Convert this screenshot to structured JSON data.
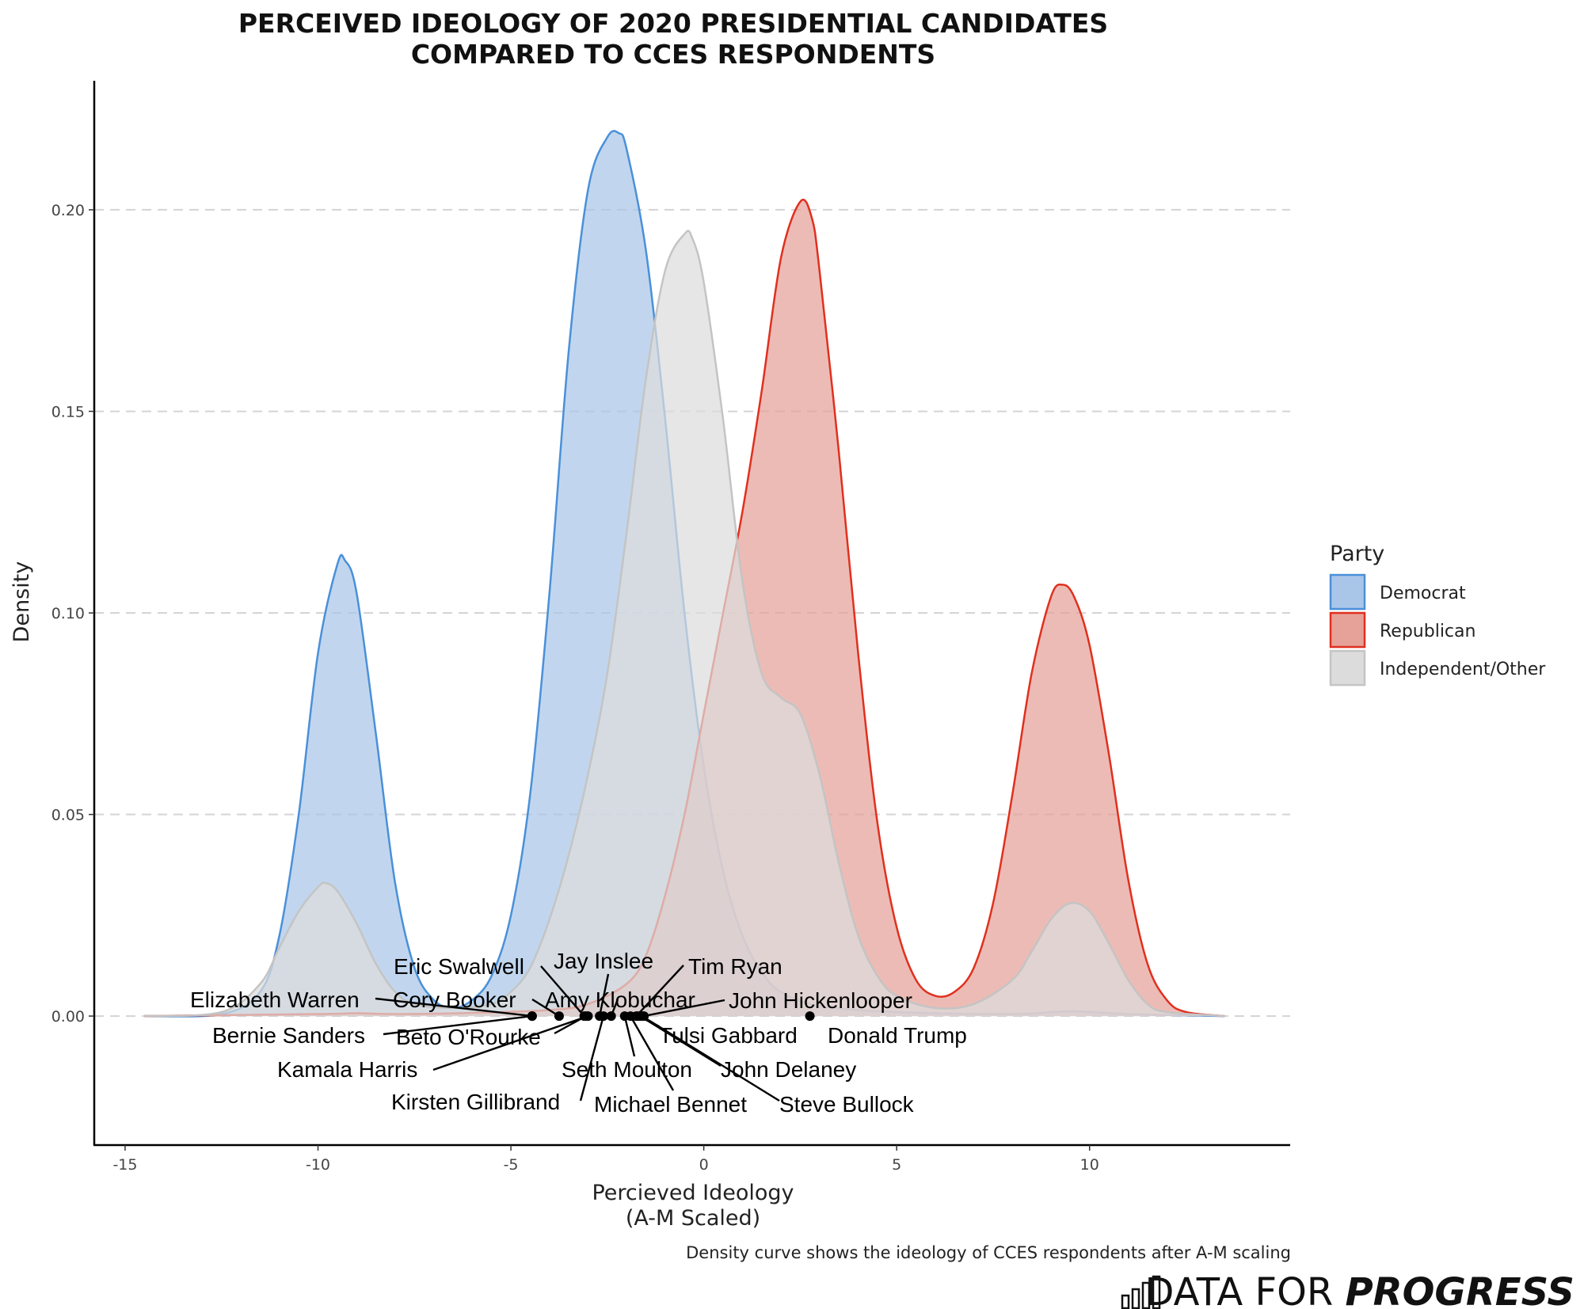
{
  "chart_data": {
    "type": "area",
    "title_lines": [
      "PERCEIVED IDEOLOGY OF 2020 PRESIDENTIAL CANDIDATES",
      "COMPARED TO CCES RESPONDENTS"
    ],
    "xlabel_lines": [
      "Percieved Ideology",
      "(A-M Scaled)"
    ],
    "ylabel": "Density",
    "caption": "Density curve shows the ideology of CCES respondents after A-M scaling",
    "xlim": [
      -15.8,
      15.2
    ],
    "ylim": [
      -0.032,
      0.232
    ],
    "x_ticks": [
      -15,
      -10,
      -5,
      0,
      5,
      10
    ],
    "y_ticks": [
      0.0,
      0.05,
      0.1,
      0.15,
      0.2
    ],
    "y_tick_labels": [
      "0.00",
      "0.05",
      "0.10",
      "0.15",
      "0.20"
    ],
    "grid": "horizontal dashed",
    "legend": {
      "title": "Party",
      "placement": "right",
      "entries": [
        {
          "label": "Democrat",
          "fill": "#a9c6e8",
          "stroke": "#4a90d9"
        },
        {
          "label": "Republican",
          "fill": "#e6a198",
          "stroke": "#e0301e"
        },
        {
          "label": "Independent/Other",
          "fill": "#dcdcdc",
          "stroke": "#c4c4c4"
        }
      ]
    },
    "series": [
      {
        "name": "Democrat",
        "fill": "#a9c6e8",
        "stroke": "#4a90d9",
        "points": [
          [
            -14.5,
            0
          ],
          [
            -12.5,
            0.0005
          ],
          [
            -11.5,
            0.006
          ],
          [
            -11,
            0.02
          ],
          [
            -10.5,
            0.05
          ],
          [
            -10,
            0.09
          ],
          [
            -9.5,
            0.112
          ],
          [
            -9.3,
            0.113
          ],
          [
            -9,
            0.105
          ],
          [
            -8.5,
            0.07
          ],
          [
            -8,
            0.033
          ],
          [
            -7.5,
            0.012
          ],
          [
            -7,
            0.004
          ],
          [
            -6.5,
            0.002
          ],
          [
            -6,
            0.004
          ],
          [
            -5.5,
            0.01
          ],
          [
            -5,
            0.025
          ],
          [
            -4.5,
            0.055
          ],
          [
            -4,
            0.105
          ],
          [
            -3.5,
            0.165
          ],
          [
            -3,
            0.205
          ],
          [
            -2.5,
            0.218
          ],
          [
            -2.2,
            0.219
          ],
          [
            -2,
            0.215
          ],
          [
            -1.5,
            0.19
          ],
          [
            -1,
            0.148
          ],
          [
            -0.5,
            0.1
          ],
          [
            0,
            0.062
          ],
          [
            0.5,
            0.036
          ],
          [
            1,
            0.02
          ],
          [
            1.5,
            0.011
          ],
          [
            2,
            0.006
          ],
          [
            3,
            0.0025
          ],
          [
            5,
            0.001
          ],
          [
            8,
            0.0005
          ],
          [
            9.5,
            0.0012
          ],
          [
            11,
            0.0005
          ],
          [
            13.5,
            0
          ]
        ]
      },
      {
        "name": "Republican",
        "fill": "#e6a198",
        "stroke": "#e0301e",
        "points": [
          [
            -14.5,
            0
          ],
          [
            -10,
            0.0005
          ],
          [
            -9,
            0.0007
          ],
          [
            -8,
            0.0005
          ],
          [
            -6,
            0.0008
          ],
          [
            -4,
            0.0015
          ],
          [
            -3,
            0.003
          ],
          [
            -2,
            0.008
          ],
          [
            -1.5,
            0.015
          ],
          [
            -1,
            0.03
          ],
          [
            -0.5,
            0.05
          ],
          [
            0,
            0.075
          ],
          [
            0.5,
            0.1
          ],
          [
            1,
            0.125
          ],
          [
            1.5,
            0.155
          ],
          [
            2,
            0.188
          ],
          [
            2.5,
            0.202
          ],
          [
            2.8,
            0.198
          ],
          [
            3,
            0.185
          ],
          [
            3.5,
            0.14
          ],
          [
            4,
            0.09
          ],
          [
            4.5,
            0.048
          ],
          [
            5,
            0.022
          ],
          [
            5.5,
            0.009
          ],
          [
            6,
            0.005
          ],
          [
            6.5,
            0.006
          ],
          [
            7,
            0.012
          ],
          [
            7.5,
            0.028
          ],
          [
            8,
            0.055
          ],
          [
            8.5,
            0.085
          ],
          [
            9,
            0.104
          ],
          [
            9.3,
            0.107
          ],
          [
            9.6,
            0.104
          ],
          [
            10,
            0.092
          ],
          [
            10.5,
            0.065
          ],
          [
            11,
            0.034
          ],
          [
            11.5,
            0.013
          ],
          [
            12,
            0.004
          ],
          [
            12.5,
            0.001
          ],
          [
            13.5,
            0
          ]
        ]
      },
      {
        "name": "Independent/Other",
        "fill": "#dcdcdc",
        "stroke": "#c4c4c4",
        "points": [
          [
            -14.5,
            0
          ],
          [
            -12.5,
            0.001
          ],
          [
            -11.5,
            0.008
          ],
          [
            -11,
            0.017
          ],
          [
            -10.5,
            0.026
          ],
          [
            -10,
            0.032
          ],
          [
            -9.8,
            0.033
          ],
          [
            -9.5,
            0.031
          ],
          [
            -9,
            0.023
          ],
          [
            -8.5,
            0.013
          ],
          [
            -8,
            0.006
          ],
          [
            -7.5,
            0.003
          ],
          [
            -6.5,
            0.002
          ],
          [
            -5.5,
            0.003
          ],
          [
            -5,
            0.006
          ],
          [
            -4.5,
            0.012
          ],
          [
            -4,
            0.024
          ],
          [
            -3.5,
            0.04
          ],
          [
            -3,
            0.06
          ],
          [
            -2.5,
            0.085
          ],
          [
            -2,
            0.12
          ],
          [
            -1.5,
            0.158
          ],
          [
            -1,
            0.185
          ],
          [
            -0.5,
            0.194
          ],
          [
            -0.3,
            0.193
          ],
          [
            0,
            0.182
          ],
          [
            0.5,
            0.148
          ],
          [
            1,
            0.108
          ],
          [
            1.5,
            0.085
          ],
          [
            2,
            0.079
          ],
          [
            2.5,
            0.075
          ],
          [
            3,
            0.06
          ],
          [
            3.5,
            0.038
          ],
          [
            4,
            0.02
          ],
          [
            4.5,
            0.01
          ],
          [
            5,
            0.005
          ],
          [
            6,
            0.002
          ],
          [
            7,
            0.003
          ],
          [
            8,
            0.009
          ],
          [
            8.5,
            0.016
          ],
          [
            9,
            0.024
          ],
          [
            9.5,
            0.028
          ],
          [
            10,
            0.026
          ],
          [
            10.5,
            0.018
          ],
          [
            11,
            0.009
          ],
          [
            11.5,
            0.003
          ],
          [
            12,
            0.001
          ],
          [
            13.5,
            0
          ]
        ]
      }
    ],
    "candidates": [
      {
        "name": "Elizabeth Warren",
        "x": -4.45
      },
      {
        "name": "Bernie Sanders",
        "x": -4.45
      },
      {
        "name": "Cory Booker",
        "x": -3.75
      },
      {
        "name": "Eric Swalwell",
        "x": -3.1
      },
      {
        "name": "Beto O'Rourke",
        "x": -3.05
      },
      {
        "name": "Kamala Harris",
        "x": -3.0
      },
      {
        "name": "Jay Inslee",
        "x": -2.7
      },
      {
        "name": "Kirsten Gillibrand",
        "x": -2.6
      },
      {
        "name": "Amy Klobuchar",
        "x": -2.4
      },
      {
        "name": "Seth Moulton",
        "x": -2.05
      },
      {
        "name": "Michael Bennet",
        "x": -1.9
      },
      {
        "name": "Tim Ryan",
        "x": -1.75
      },
      {
        "name": "Tulsi Gabbard",
        "x": -1.7
      },
      {
        "name": "John Delaney",
        "x": -1.65
      },
      {
        "name": "Steve Bullock",
        "x": -1.6
      },
      {
        "name": "John Hickenlooper",
        "x": -1.55
      },
      {
        "name": "Donald Trump",
        "x": 2.75
      }
    ]
  },
  "brand": {
    "light": "DATA FOR",
    "bold": "PROGRESS"
  }
}
